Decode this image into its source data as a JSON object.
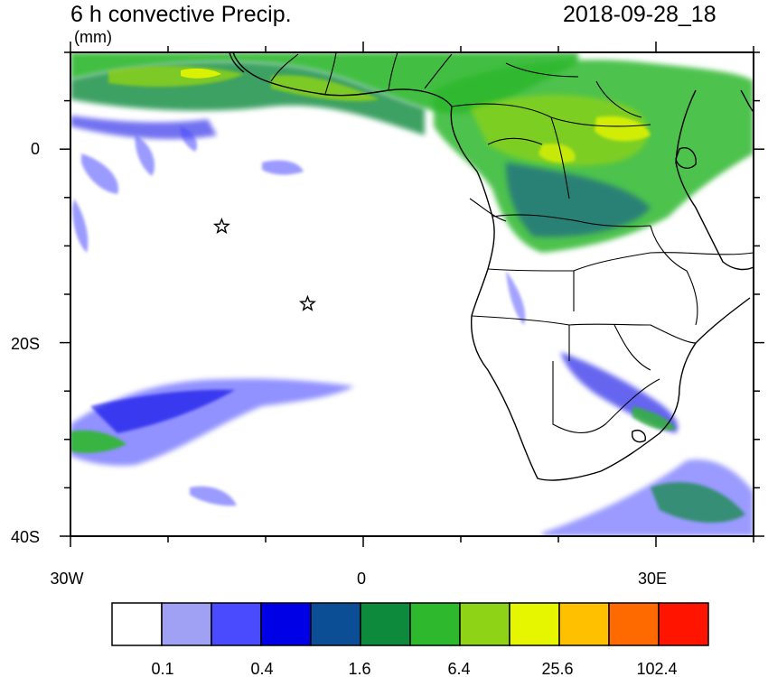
{
  "header": {
    "title": "6 h convective Precip.",
    "units": "(mm)",
    "datetime": "2018-09-28_18"
  },
  "map": {
    "lon_range": [
      -30,
      40
    ],
    "lat_range": [
      -40,
      10
    ],
    "lon_tick_labels": [
      "30W",
      "0",
      "30E"
    ],
    "lat_tick_labels": [
      "0",
      "20S",
      "40S"
    ],
    "markers": [
      {
        "name": "star-1",
        "lon": -14.5,
        "lat": -8
      },
      {
        "name": "star-2",
        "lon": -5.7,
        "lat": -16
      }
    ]
  },
  "colorbar": {
    "colors": [
      "#ffffff",
      "#a0a0f5",
      "#4a4aff",
      "#0000e6",
      "#0b4e96",
      "#0e8a3c",
      "#2eb82e",
      "#8ed316",
      "#e6f500",
      "#ffc000",
      "#ff6a00",
      "#ff1400"
    ],
    "labels": [
      "0.1",
      "0.4",
      "1.6",
      "6.4",
      "25.6",
      "102.4"
    ]
  }
}
